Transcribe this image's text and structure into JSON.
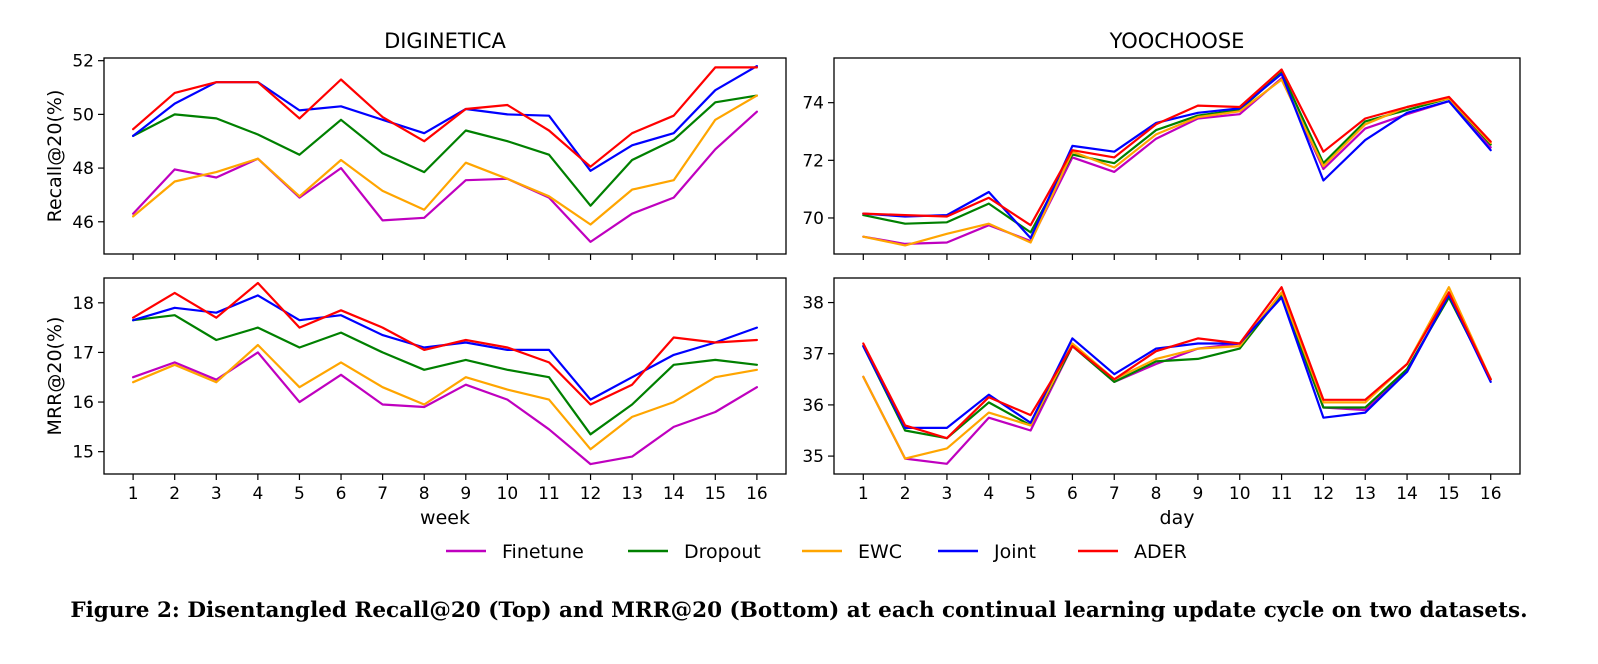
{
  "caption": "Figure 2: Disentangled Recall@20 (Top) and MRR@20 (Bottom) at each continual learning update cycle on two datasets.",
  "legend": {
    "placement": "bottom-center",
    "items": [
      {
        "name": "Finetune",
        "color": "#bf00bf"
      },
      {
        "name": "Dropout",
        "color": "#008000"
      },
      {
        "name": "EWC",
        "color": "#ffa500"
      },
      {
        "name": "Joint",
        "color": "#0000ff"
      },
      {
        "name": "ADER",
        "color": "#ff0000"
      }
    ]
  },
  "chart_data": [
    {
      "type": "line",
      "title": "DIGINETICA",
      "xlabel": "",
      "ylabel": "Recall@20(%)",
      "x": [
        1,
        2,
        3,
        4,
        5,
        6,
        7,
        8,
        9,
        10,
        11,
        12,
        13,
        14,
        15,
        16
      ],
      "xticks": [
        1,
        2,
        3,
        4,
        5,
        6,
        7,
        8,
        9,
        10,
        11,
        12,
        13,
        14,
        15,
        16
      ],
      "xlim": [
        0.3,
        16.7
      ],
      "ylim": [
        44.8,
        52.1
      ],
      "yticks": [
        46,
        48,
        50,
        52
      ],
      "grid": false,
      "series": [
        {
          "name": "Finetune",
          "values": [
            46.3,
            47.95,
            47.65,
            48.35,
            46.9,
            48.0,
            46.05,
            46.15,
            47.55,
            47.6,
            46.9,
            45.25,
            46.3,
            46.9,
            48.7,
            50.1
          ]
        },
        {
          "name": "Dropout",
          "values": [
            49.2,
            50.0,
            49.85,
            49.25,
            48.5,
            49.8,
            48.55,
            47.85,
            49.4,
            49.0,
            48.5,
            46.6,
            48.3,
            49.05,
            50.45,
            50.7
          ]
        },
        {
          "name": "EWC",
          "values": [
            46.2,
            47.5,
            47.85,
            48.35,
            46.95,
            48.3,
            47.15,
            46.45,
            48.2,
            47.6,
            46.95,
            45.9,
            47.2,
            47.55,
            49.8,
            50.7
          ]
        },
        {
          "name": "Joint",
          "values": [
            49.2,
            50.4,
            51.2,
            51.2,
            50.15,
            50.3,
            49.8,
            49.3,
            50.2,
            50.0,
            49.95,
            47.9,
            48.85,
            49.3,
            50.9,
            51.8
          ]
        },
        {
          "name": "ADER",
          "values": [
            49.45,
            50.8,
            51.2,
            51.2,
            49.85,
            51.3,
            49.9,
            49.0,
            50.2,
            50.35,
            49.4,
            48.05,
            49.3,
            49.95,
            51.75,
            51.75
          ]
        }
      ]
    },
    {
      "type": "line",
      "title": "YOOCHOOSE",
      "xlabel": "",
      "ylabel": "",
      "x": [
        1,
        2,
        3,
        4,
        5,
        6,
        7,
        8,
        9,
        10,
        11,
        12,
        13,
        14,
        15,
        16
      ],
      "xticks": [
        1,
        2,
        3,
        4,
        5,
        6,
        7,
        8,
        9,
        10,
        11,
        12,
        13,
        14,
        15,
        16
      ],
      "xlim": [
        0.3,
        16.7
      ],
      "ylim": [
        68.75,
        75.55
      ],
      "yticks": [
        70,
        72,
        74
      ],
      "grid": false,
      "series": [
        {
          "name": "Finetune",
          "values": [
            69.35,
            69.1,
            69.15,
            69.75,
            69.2,
            72.1,
            71.6,
            72.75,
            73.45,
            73.6,
            74.85,
            71.7,
            73.1,
            73.6,
            74.05,
            72.45
          ]
        },
        {
          "name": "Dropout",
          "values": [
            70.1,
            69.8,
            69.85,
            70.5,
            69.5,
            72.2,
            71.9,
            73.05,
            73.55,
            73.75,
            75.05,
            71.9,
            73.35,
            73.75,
            74.15,
            72.55
          ]
        },
        {
          "name": "EWC",
          "values": [
            69.35,
            69.05,
            69.45,
            69.8,
            69.15,
            72.3,
            71.75,
            72.9,
            73.5,
            73.7,
            74.8,
            71.8,
            73.25,
            73.85,
            74.15,
            72.6
          ]
        },
        {
          "name": "Joint",
          "values": [
            70.15,
            70.05,
            70.1,
            70.9,
            69.3,
            72.5,
            72.3,
            73.3,
            73.65,
            73.8,
            75.0,
            71.3,
            72.7,
            73.65,
            74.05,
            72.35
          ]
        },
        {
          "name": "ADER",
          "values": [
            70.15,
            70.1,
            70.05,
            70.7,
            69.75,
            72.35,
            72.1,
            73.25,
            73.9,
            73.85,
            75.15,
            72.3,
            73.45,
            73.85,
            74.2,
            72.65
          ]
        }
      ]
    },
    {
      "type": "line",
      "title": "",
      "xlabel": "week",
      "ylabel": "MRR@20(%)",
      "x": [
        1,
        2,
        3,
        4,
        5,
        6,
        7,
        8,
        9,
        10,
        11,
        12,
        13,
        14,
        15,
        16
      ],
      "xticks": [
        1,
        2,
        3,
        4,
        5,
        6,
        7,
        8,
        9,
        10,
        11,
        12,
        13,
        14,
        15,
        16
      ],
      "xlim": [
        0.3,
        16.7
      ],
      "ylim": [
        14.55,
        18.5
      ],
      "yticks": [
        15,
        16,
        17,
        18
      ],
      "grid": false,
      "series": [
        {
          "name": "Finetune",
          "values": [
            16.5,
            16.8,
            16.45,
            17.0,
            16.0,
            16.55,
            15.95,
            15.9,
            16.35,
            16.05,
            15.45,
            14.75,
            14.9,
            15.5,
            15.8,
            16.3
          ]
        },
        {
          "name": "Dropout",
          "values": [
            17.65,
            17.75,
            17.25,
            17.5,
            17.1,
            17.4,
            17.0,
            16.65,
            16.85,
            16.65,
            16.5,
            15.35,
            15.95,
            16.75,
            16.85,
            16.75
          ]
        },
        {
          "name": "EWC",
          "values": [
            16.4,
            16.75,
            16.4,
            17.15,
            16.3,
            16.8,
            16.3,
            15.95,
            16.5,
            16.25,
            16.05,
            15.05,
            15.7,
            16.0,
            16.5,
            16.65
          ]
        },
        {
          "name": "Joint",
          "values": [
            17.65,
            17.9,
            17.8,
            18.15,
            17.65,
            17.75,
            17.35,
            17.1,
            17.2,
            17.05,
            17.05,
            16.05,
            16.5,
            16.95,
            17.2,
            17.5
          ]
        },
        {
          "name": "ADER",
          "values": [
            17.7,
            18.2,
            17.7,
            18.4,
            17.5,
            17.85,
            17.5,
            17.05,
            17.25,
            17.1,
            16.8,
            15.95,
            16.35,
            17.3,
            17.2,
            17.25
          ]
        }
      ]
    },
    {
      "type": "line",
      "title": "",
      "xlabel": "day",
      "ylabel": "",
      "x": [
        1,
        2,
        3,
        4,
        5,
        6,
        7,
        8,
        9,
        10,
        11,
        12,
        13,
        14,
        15,
        16
      ],
      "xticks": [
        1,
        2,
        3,
        4,
        5,
        6,
        7,
        8,
        9,
        10,
        11,
        12,
        13,
        14,
        15,
        16
      ],
      "xlim": [
        0.3,
        16.7
      ],
      "ylim": [
        34.65,
        38.48
      ],
      "yticks": [
        35,
        36,
        37,
        38
      ],
      "grid": false,
      "series": [
        {
          "name": "Finetune",
          "values": [
            36.55,
            34.95,
            34.85,
            35.75,
            35.5,
            37.15,
            36.45,
            36.8,
            37.1,
            37.2,
            38.1,
            35.95,
            35.9,
            36.65,
            38.15,
            36.5
          ]
        },
        {
          "name": "Dropout",
          "values": [
            37.15,
            35.5,
            35.35,
            36.05,
            35.6,
            37.15,
            36.45,
            36.85,
            36.9,
            37.1,
            38.15,
            35.95,
            35.95,
            36.7,
            38.1,
            36.5
          ]
        },
        {
          "name": "EWC",
          "values": [
            36.55,
            34.95,
            35.15,
            35.85,
            35.6,
            37.2,
            36.5,
            36.9,
            37.1,
            37.15,
            38.2,
            36.05,
            36.05,
            36.8,
            38.3,
            36.5
          ]
        },
        {
          "name": "Joint",
          "values": [
            37.15,
            35.55,
            35.55,
            36.2,
            35.65,
            37.3,
            36.6,
            37.1,
            37.2,
            37.2,
            38.1,
            35.75,
            35.85,
            36.65,
            38.15,
            36.45
          ]
        },
        {
          "name": "ADER",
          "values": [
            37.2,
            35.6,
            35.35,
            36.15,
            35.8,
            37.15,
            36.5,
            37.05,
            37.3,
            37.2,
            38.3,
            36.1,
            36.1,
            36.8,
            38.2,
            36.5
          ]
        }
      ]
    }
  ]
}
